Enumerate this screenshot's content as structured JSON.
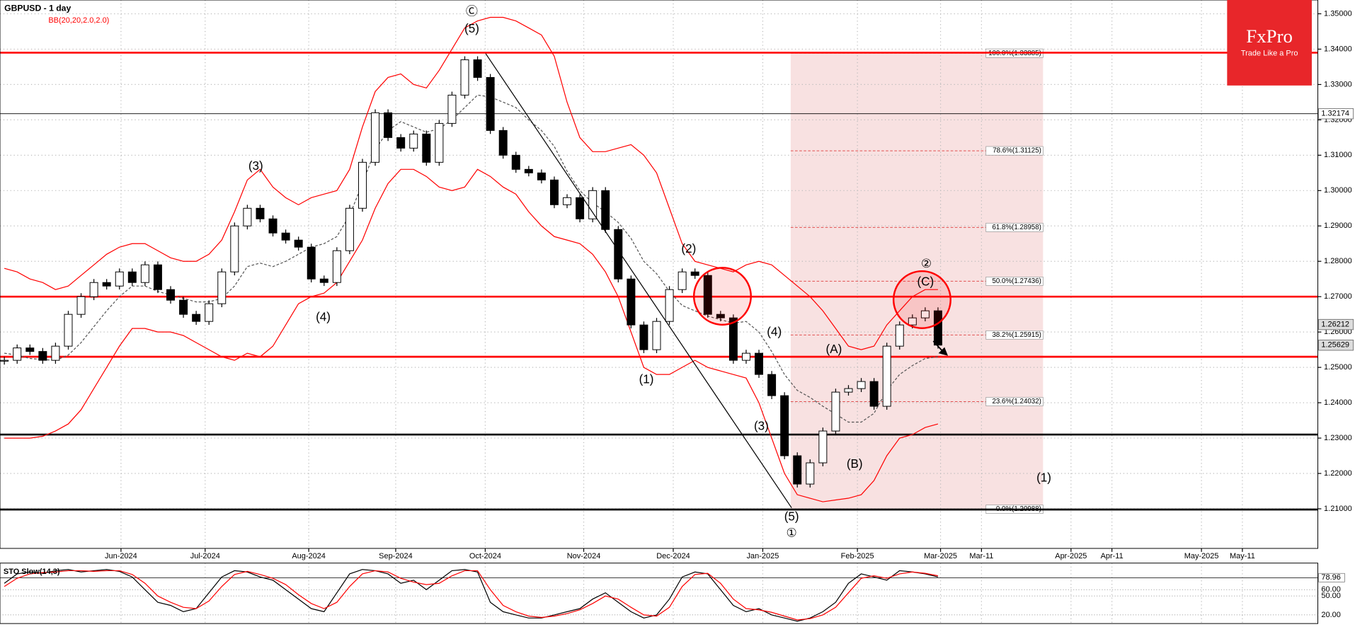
{
  "chart_data": {
    "type": "candlestick",
    "title": "GBPUSD - 1 day",
    "indicator": "BB(20,20,2.0,2.0)",
    "logo": {
      "brand": "FxPro",
      "tagline": "Trade Like a Pro"
    },
    "xlim": [
      -0.34,
      102.7
    ],
    "xticks": [
      {
        "value": 9.12,
        "label": "Jun-2024"
      },
      {
        "value": 15.7,
        "label": "Jul-2024"
      },
      {
        "value": 23.8,
        "label": "Aug-2024"
      },
      {
        "value": 30.6,
        "label": "Sep-2024"
      },
      {
        "value": 37.6,
        "label": "Oct-2024"
      },
      {
        "value": 45.3,
        "label": "Nov-2024"
      },
      {
        "value": 52.3,
        "label": "Dec-2024"
      },
      {
        "value": 59.3,
        "label": "Jan-2025"
      },
      {
        "value": 66.7,
        "label": "Feb-2025"
      },
      {
        "value": 73.2,
        "label": "Mar-2025"
      },
      {
        "value": 76.4,
        "label": "Mar-11"
      },
      {
        "value": 83.4,
        "label": "Apr-2025"
      },
      {
        "value": 86.6,
        "label": "Apr-11"
      },
      {
        "value": 93.6,
        "label": "May-2025"
      },
      {
        "value": 96.8,
        "label": "May-11"
      }
    ],
    "ylim": [
      1.1988,
      1.3539
    ],
    "yticks": [
      {
        "value": 1.21,
        "label": "1.21000"
      },
      {
        "value": 1.22,
        "label": "1.22000"
      },
      {
        "value": 1.23,
        "label": "1.23000"
      },
      {
        "value": 1.24,
        "label": "1.24000"
      },
      {
        "value": 1.25,
        "label": "1.25000"
      },
      {
        "value": 1.26,
        "label": "1.26000"
      },
      {
        "value": 1.27,
        "label": "1.27000"
      },
      {
        "value": 1.28,
        "label": "1.28000"
      },
      {
        "value": 1.29,
        "label": "1.29000"
      },
      {
        "value": 1.3,
        "label": "1.30000"
      },
      {
        "value": 1.31,
        "label": "1.31000"
      },
      {
        "value": 1.32,
        "label": "1.32000"
      },
      {
        "value": 1.33,
        "label": "1.33000"
      },
      {
        "value": 1.34,
        "label": "1.34000"
      },
      {
        "value": 1.35,
        "label": "1.35000"
      }
    ],
    "grid": true,
    "up_color": "#ffffff",
    "down_color": "#000000",
    "close": [
      1.252,
      1.2555,
      1.2545,
      1.252,
      1.256,
      1.265,
      1.27,
      1.274,
      1.273,
      1.277,
      1.274,
      1.279,
      1.272,
      1.269,
      1.265,
      1.263,
      1.268,
      1.277,
      1.29,
      1.295,
      1.292,
      1.288,
      1.286,
      1.284,
      1.275,
      1.274,
      1.283,
      1.295,
      1.308,
      1.322,
      1.315,
      1.312,
      1.316,
      1.308,
      1.319,
      1.327,
      1.337,
      1.332,
      1.317,
      1.31,
      1.306,
      1.305,
      1.303,
      1.296,
      1.298,
      1.292,
      1.3,
      1.289,
      1.275,
      1.262,
      1.255,
      1.263,
      1.272,
      1.277,
      1.276,
      1.265,
      1.264,
      1.252,
      1.254,
      1.248,
      1.242,
      1.225,
      1.217,
      1.223,
      1.232,
      1.243,
      1.244,
      1.246,
      1.239,
      1.256,
      1.262,
      1.264,
      1.266,
      1.2563
    ],
    "bands": [
      {
        "name": "upper",
        "color": "#ff0000",
        "values": [
          1.278,
          1.277,
          1.275,
          1.274,
          1.272,
          1.273,
          1.276,
          1.279,
          1.282,
          1.284,
          1.285,
          1.285,
          1.283,
          1.281,
          1.28,
          1.28,
          1.282,
          1.286,
          1.294,
          1.303,
          1.306,
          1.301,
          1.298,
          1.296,
          1.298,
          1.299,
          1.3,
          1.306,
          1.318,
          1.328,
          1.332,
          1.333,
          1.33,
          1.329,
          1.334,
          1.34,
          1.346,
          1.348,
          1.349,
          1.349,
          1.348,
          1.346,
          1.344,
          1.338,
          1.325,
          1.315,
          1.311,
          1.311,
          1.312,
          1.313,
          1.31,
          1.305,
          1.295,
          1.285,
          1.28,
          1.279,
          1.278,
          1.277,
          1.279,
          1.28,
          1.279,
          1.276,
          1.273,
          1.27,
          1.266,
          1.261,
          1.256,
          1.255,
          1.256,
          1.262,
          1.266,
          1.27,
          1.272,
          1.272
        ]
      },
      {
        "name": "middle",
        "color": "#555555",
        "values": [
          1.254,
          1.2535,
          1.2525,
          1.2522,
          1.252,
          1.2535,
          1.257,
          1.2615,
          1.266,
          1.27,
          1.273,
          1.273,
          1.2715,
          1.2705,
          1.2695,
          1.2685,
          1.2685,
          1.2695,
          1.273,
          1.2785,
          1.2795,
          1.2785,
          1.28,
          1.282,
          1.284,
          1.285,
          1.287,
          1.293,
          1.302,
          1.3115,
          1.317,
          1.3195,
          1.318,
          1.3165,
          1.3175,
          1.32,
          1.3235,
          1.327,
          1.3265,
          1.325,
          1.3235,
          1.32,
          1.317,
          1.3125,
          1.3055,
          1.3,
          1.2965,
          1.294,
          1.291,
          1.2865,
          1.28,
          1.2765,
          1.2715,
          1.2675,
          1.266,
          1.2645,
          1.2635,
          1.2625,
          1.263,
          1.26,
          1.2545,
          1.248,
          1.2435,
          1.2415,
          1.239,
          1.2368,
          1.2345,
          1.2345,
          1.237,
          1.2435,
          1.248,
          1.2505,
          1.2525,
          1.253
        ]
      },
      {
        "name": "lower",
        "color": "#ff0000",
        "values": [
          1.23,
          1.23,
          1.23,
          1.2305,
          1.232,
          1.234,
          1.238,
          1.244,
          1.25,
          1.256,
          1.261,
          1.261,
          1.26,
          1.26,
          1.259,
          1.257,
          1.255,
          1.253,
          1.252,
          1.254,
          1.253,
          1.256,
          1.262,
          1.268,
          1.27,
          1.271,
          1.274,
          1.28,
          1.286,
          1.295,
          1.302,
          1.306,
          1.306,
          1.304,
          1.301,
          1.3,
          1.301,
          1.306,
          1.304,
          1.301,
          1.299,
          1.294,
          1.29,
          1.287,
          1.286,
          1.285,
          1.282,
          1.277,
          1.27,
          1.26,
          1.25,
          1.248,
          1.248,
          1.25,
          1.252,
          1.25,
          1.249,
          1.248,
          1.247,
          1.24,
          1.23,
          1.22,
          1.214,
          1.213,
          1.212,
          1.2125,
          1.213,
          1.214,
          1.218,
          1.225,
          1.23,
          1.231,
          1.233,
          1.234
        ]
      }
    ],
    "levels": [
      {
        "value": 1.339,
        "color": "#ff0000",
        "weight": "thick"
      },
      {
        "value": 1.27,
        "color": "#ff0000",
        "weight": "thick"
      },
      {
        "value": 1.253,
        "color": "#ff0000",
        "weight": "thick"
      },
      {
        "value": 1.231,
        "color": "#000000",
        "weight": "thick"
      },
      {
        "value": 1.2098,
        "color": "#000000",
        "weight": "thick"
      },
      {
        "value": 1.32174,
        "color": "#000000",
        "weight": "thin"
      }
    ],
    "fib_levels": [
      {
        "value": 1.33885,
        "label": "100.0%(1.33885)"
      },
      {
        "value": 1.31125,
        "label": "78.6%(1.31125)"
      },
      {
        "value": 1.28958,
        "label": "61.8%(1.28958)"
      },
      {
        "value": 1.27436,
        "label": "50.0%(1.27436)"
      },
      {
        "value": 1.25915,
        "label": "38.2%(1.25915)"
      },
      {
        "value": 1.24032,
        "label": "23.6%(1.24032)"
      },
      {
        "value": 1.20988,
        "label": "0.0%(1.20988)"
      }
    ],
    "price_markers": [
      {
        "value": 1.32174,
        "label": "1.32174"
      },
      {
        "value": 1.26212,
        "label": "1.26212"
      },
      {
        "value": 1.25629,
        "label": "1.25629"
      }
    ],
    "annotations": [
      "Ⓒ",
      "(5)",
      "(3)",
      "(4)",
      "(1)",
      "(2)",
      "(4)",
      "(3)",
      "(5)",
      "①",
      "(A)",
      "(B)",
      "②",
      "(C)",
      "(1)"
    ],
    "oscillator": {
      "title": "STO Slow(14,3)",
      "ylim": [
        9,
        98
      ],
      "yticks": [
        {
          "value": 78.96,
          "label": "78.96"
        },
        {
          "value": 60,
          "label": "60.00"
        },
        {
          "value": 50,
          "label": "50.00"
        },
        {
          "value": 20,
          "label": "20.00"
        }
      ],
      "series": [
        {
          "name": "%K",
          "color": "#000000",
          "values": [
            70,
            85,
            88,
            86,
            90,
            92,
            88,
            90,
            92,
            89,
            80,
            60,
            40,
            35,
            25,
            30,
            55,
            80,
            90,
            88,
            80,
            75,
            60,
            45,
            30,
            25,
            55,
            85,
            92,
            90,
            85,
            70,
            75,
            60,
            75,
            90,
            92,
            88,
            40,
            25,
            20,
            15,
            15,
            20,
            25,
            30,
            45,
            55,
            40,
            25,
            15,
            20,
            45,
            80,
            88,
            85,
            60,
            35,
            25,
            30,
            20,
            15,
            10,
            15,
            25,
            40,
            70,
            85,
            80,
            75,
            90,
            88,
            85,
            80
          ]
        },
        {
          "name": "%D",
          "color": "#ff0000",
          "values": [
            65,
            78,
            85,
            87,
            88,
            90,
            90,
            89,
            90,
            90,
            84,
            70,
            50,
            40,
            32,
            30,
            42,
            65,
            84,
            89,
            84,
            78,
            68,
            52,
            38,
            30,
            40,
            65,
            85,
            90,
            88,
            78,
            72,
            68,
            70,
            82,
            90,
            90,
            60,
            35,
            25,
            18,
            16,
            18,
            22,
            28,
            38,
            50,
            45,
            32,
            20,
            18,
            32,
            65,
            84,
            86,
            70,
            45,
            30,
            28,
            24,
            18,
            12,
            14,
            20,
            32,
            55,
            78,
            82,
            78,
            85,
            88,
            86,
            82
          ]
        }
      ]
    }
  }
}
